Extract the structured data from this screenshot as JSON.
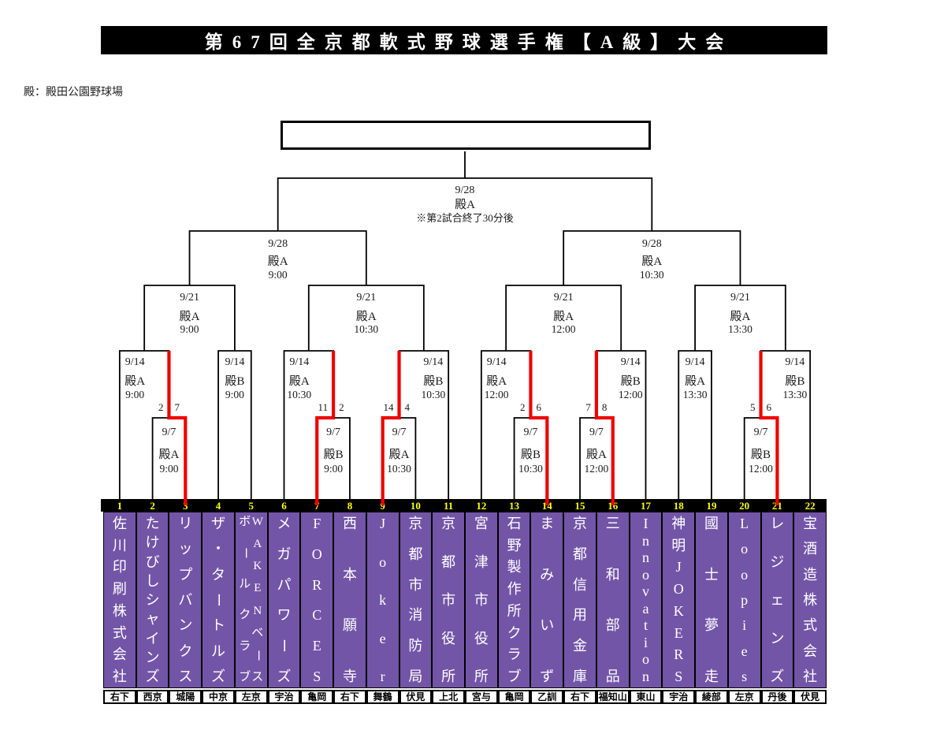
{
  "title": "第67回全京都軟式野球選手権【A級】大会",
  "venue_note": "殿：殿田公園野球場",
  "colors": {
    "purple": "#7355a7",
    "red": "#ee0000",
    "yellow": "#ffff00",
    "line": "#000000"
  },
  "champion_box_value": "",
  "teams": [
    {
      "no": "1",
      "name": "佐川印刷株式会社",
      "region": "右下"
    },
    {
      "no": "2",
      "name": "たけびしシャインズ",
      "region": "西京"
    },
    {
      "no": "3",
      "name": "リップバンクス",
      "region": "城陽"
    },
    {
      "no": "4",
      "name": "ザ・タートルズ",
      "region": "中京"
    },
    {
      "no": "5",
      "name": "WAKENベースボールクラブ",
      "lines": [
        "WAKENベース",
        "ボールクラブ"
      ],
      "region": "左京"
    },
    {
      "no": "6",
      "name": "メガパワーズ",
      "region": "宇治"
    },
    {
      "no": "7",
      "name": "FORCES",
      "region": "亀岡"
    },
    {
      "no": "8",
      "name": "西本願寺",
      "region": "右下"
    },
    {
      "no": "9",
      "name": "Joker",
      "region": "舞鶴"
    },
    {
      "no": "10",
      "name": "京都市消防局",
      "region": "伏見"
    },
    {
      "no": "11",
      "name": "京都市役所",
      "region": "上北"
    },
    {
      "no": "12",
      "name": "宮津市役所",
      "region": "宮与"
    },
    {
      "no": "13",
      "name": "石野製作所クラブ",
      "region": "亀岡"
    },
    {
      "no": "14",
      "name": "まみいず",
      "region": "乙訓"
    },
    {
      "no": "15",
      "name": "京都信用金庫",
      "region": "右下"
    },
    {
      "no": "16",
      "name": "三和部品",
      "region": "福知山"
    },
    {
      "no": "17",
      "name": "Innovation",
      "region": "東山"
    },
    {
      "no": "18",
      "name": "神明JOKERS",
      "region": "宇治"
    },
    {
      "no": "19",
      "name": "國士夢走",
      "region": "綾部"
    },
    {
      "no": "20",
      "name": "Loopies",
      "region": "左京"
    },
    {
      "no": "21",
      "name": "レジェンズ",
      "region": "丹後"
    },
    {
      "no": "22",
      "name": "宝酒造株式会社",
      "region": "伏見"
    }
  ],
  "bracket": {
    "first_round": [
      {
        "id": "FR1",
        "date": "9/7",
        "venue": "殿A",
        "time": "9:00",
        "left_team": 2,
        "right_team": 3,
        "left_score": "2",
        "right_score": "7",
        "winner": "right"
      },
      {
        "id": "FR2",
        "date": "9/7",
        "venue": "殿B",
        "time": "9:00",
        "left_team": 7,
        "right_team": 8,
        "left_score": "11",
        "right_score": "2",
        "winner": "left"
      },
      {
        "id": "FR3",
        "date": "9/7",
        "venue": "殿A",
        "time": "10:30",
        "left_team": 9,
        "right_team": 10,
        "left_score": "14",
        "right_score": "4",
        "winner": "left"
      },
      {
        "id": "FR4",
        "date": "9/7",
        "venue": "殿B",
        "time": "10:30",
        "left_team": 13,
        "right_team": 14,
        "left_score": "2",
        "right_score": "6",
        "winner": "right"
      },
      {
        "id": "FR5",
        "date": "9/7",
        "venue": "殿A",
        "time": "12:00",
        "left_team": 15,
        "right_team": 16,
        "left_score": "7",
        "right_score": "8",
        "winner": "right"
      },
      {
        "id": "FR6",
        "date": "9/7",
        "venue": "殿B",
        "time": "12:00",
        "left_team": 20,
        "right_team": 21,
        "left_score": "5",
        "right_score": "6",
        "winner": "right"
      }
    ],
    "round_of_16": [
      {
        "id": "R1",
        "date": "9/14",
        "venue": "殿A",
        "time": "9:00",
        "left": {
          "type": "team",
          "team": 1
        },
        "right": {
          "type": "fr",
          "match": "FR1"
        }
      },
      {
        "id": "R2",
        "date": "9/14",
        "venue": "殿B",
        "time": "9:00",
        "left": {
          "type": "team",
          "team": 4
        },
        "right": {
          "type": "team",
          "team": 5
        }
      },
      {
        "id": "R3",
        "date": "9/14",
        "venue": "殿A",
        "time": "10:30",
        "left": {
          "type": "team",
          "team": 6
        },
        "right": {
          "type": "fr",
          "match": "FR2"
        }
      },
      {
        "id": "R4",
        "date": "9/14",
        "venue": "殿B",
        "time": "10:30",
        "left": {
          "type": "fr",
          "match": "FR3"
        },
        "right": {
          "type": "team",
          "team": 11
        }
      },
      {
        "id": "R5",
        "date": "9/14",
        "venue": "殿A",
        "time": "12:00",
        "left": {
          "type": "team",
          "team": 12
        },
        "right": {
          "type": "fr",
          "match": "FR4"
        }
      },
      {
        "id": "R6",
        "date": "9/14",
        "venue": "殿B",
        "time": "12:00",
        "left": {
          "type": "fr",
          "match": "FR5"
        },
        "right": {
          "type": "team",
          "team": 17
        }
      },
      {
        "id": "R7",
        "date": "9/14",
        "venue": "殿A",
        "time": "13:30",
        "left": {
          "type": "team",
          "team": 18
        },
        "right": {
          "type": "team",
          "team": 19
        }
      },
      {
        "id": "R8",
        "date": "9/14",
        "venue": "殿B",
        "time": "13:30",
        "left": {
          "type": "fr",
          "match": "FR6"
        },
        "right": {
          "type": "team",
          "team": 22
        }
      }
    ],
    "quarterfinals": [
      {
        "id": "QF1",
        "date": "9/21",
        "venue": "殿A",
        "time": "9:00",
        "left": "R1",
        "right": "R2"
      },
      {
        "id": "QF2",
        "date": "9/21",
        "venue": "殿A",
        "time": "10:30",
        "left": "R3",
        "right": "R4"
      },
      {
        "id": "QF3",
        "date": "9/21",
        "venue": "殿A",
        "time": "12:00",
        "left": "R5",
        "right": "R6"
      },
      {
        "id": "QF4",
        "date": "9/21",
        "venue": "殿A",
        "time": "13:30",
        "left": "R7",
        "right": "R8"
      }
    ],
    "semifinals": [
      {
        "id": "SF1",
        "date": "9/28",
        "venue": "殿A",
        "time": "9:00",
        "left": "QF1",
        "right": "QF2"
      },
      {
        "id": "SF2",
        "date": "9/28",
        "venue": "殿A",
        "time": "10:30",
        "left": "QF3",
        "right": "QF4"
      }
    ],
    "final": {
      "date": "9/28",
      "venue": "殿A",
      "note": "※第2試合終了30分後",
      "left": "SF1",
      "right": "SF2"
    }
  }
}
